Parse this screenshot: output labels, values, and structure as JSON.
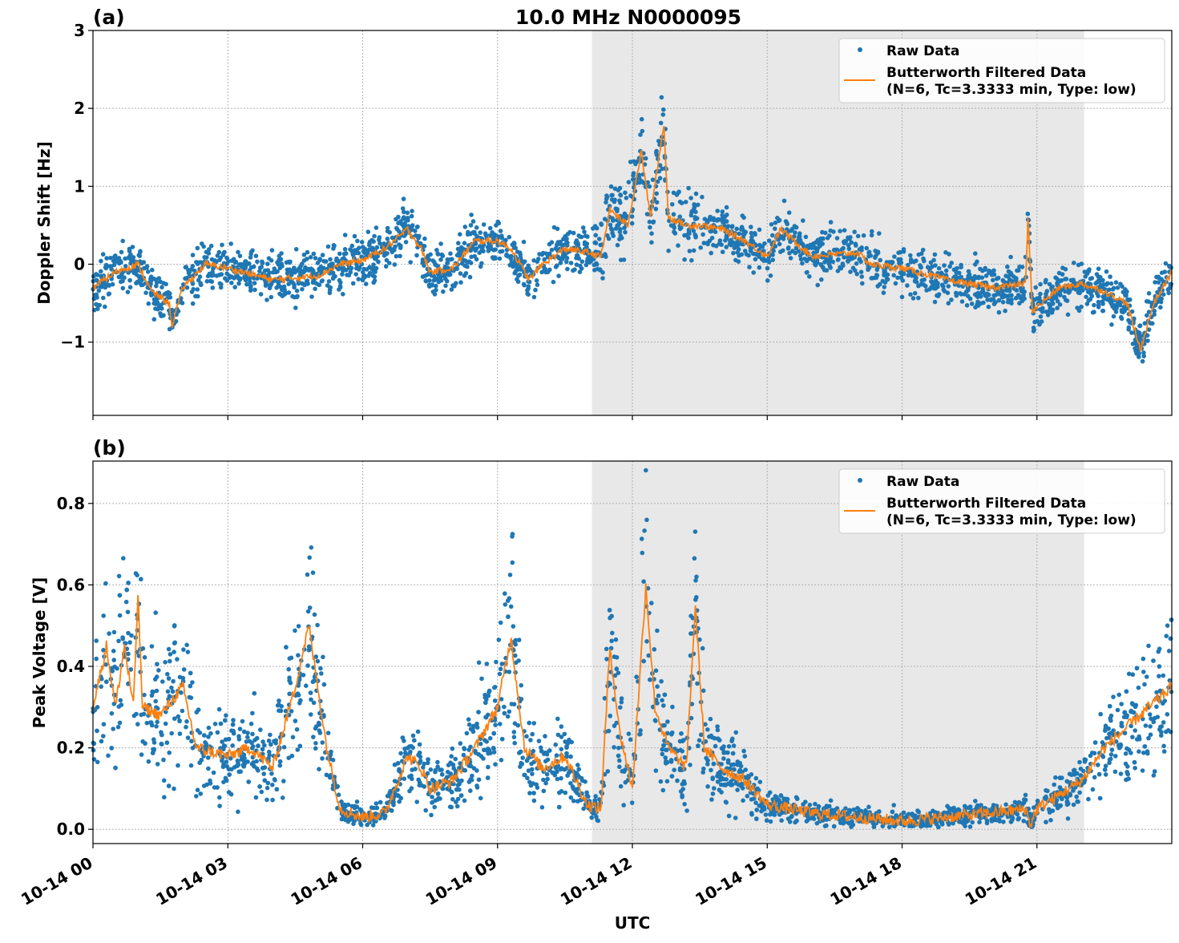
{
  "chart_data": {
    "title": "10.0 MHz N0000095",
    "xlabel": "UTC",
    "x_units": "hours UTC on 10-14",
    "xlim": [
      0,
      24
    ],
    "x_ticks": [
      0,
      3,
      6,
      9,
      12,
      15,
      18,
      21
    ],
    "x_tick_labels": [
      "10-14 00",
      "10-14 03",
      "10-14 06",
      "10-14 09",
      "10-14 12",
      "10-14 15",
      "10-14 18",
      "10-14 21"
    ],
    "grid": true,
    "shaded_interval_hours": [
      11.1,
      22.05
    ],
    "shade_color": "#e8e8e8",
    "colors": {
      "raw": "#1f77b4",
      "filtered": "#ff7f0e"
    },
    "legend": {
      "placement": "top-right",
      "raw_label": "Raw Data",
      "filtered_label_1": "Butterworth Filtered Data",
      "filtered_label_2": "(N=6, Tc=3.3333 min, Type: low)"
    },
    "panels": [
      {
        "label": "(a)",
        "type": "scatter+line",
        "ylabel": "Doppler Shift [Hz]",
        "ylim": [
          -1.94,
          3
        ],
        "y_ticks": [
          -1,
          0,
          1,
          2,
          3
        ],
        "y_tick_labels": [
          "−1",
          "0",
          "1",
          "2",
          "3"
        ],
        "filtered": {
          "x": [
            0,
            0.5,
            1,
            1.3,
            1.7,
            1.75,
            2,
            2.5,
            3,
            4,
            5,
            5.5,
            6,
            6.5,
            7,
            7.3,
            7.5,
            8,
            8.5,
            9,
            9.3,
            9.7,
            10,
            10.5,
            11,
            11.3,
            11.5,
            11.9,
            12.2,
            12.4,
            12.7,
            12.8,
            13.2,
            13.5,
            14,
            14.5,
            15,
            15.3,
            16,
            17,
            17.3,
            18,
            19,
            20,
            20.75,
            20.8,
            20.9,
            21.5,
            22,
            22.5,
            23,
            23.3,
            23.6,
            24
          ],
          "y": [
            -0.3,
            -0.1,
            0.0,
            -0.35,
            -0.5,
            -0.8,
            -0.3,
            0.0,
            -0.05,
            -0.2,
            -0.15,
            0.0,
            0.05,
            0.2,
            0.45,
            0.2,
            -0.1,
            -0.05,
            0.3,
            0.3,
            0.2,
            -0.2,
            0.0,
            0.2,
            0.15,
            0.1,
            0.7,
            0.5,
            1.45,
            0.6,
            1.8,
            0.6,
            0.5,
            0.5,
            0.45,
            0.3,
            0.1,
            0.45,
            0.1,
            0.15,
            0.0,
            -0.05,
            -0.2,
            -0.3,
            -0.25,
            0.6,
            -0.6,
            -0.3,
            -0.25,
            -0.35,
            -0.5,
            -1.1,
            -0.5,
            -0.1
          ]
        },
        "raw_approx_spread": 0.3
      },
      {
        "label": "(b)",
        "type": "scatter+line",
        "ylabel": "Peak Voltage [V]",
        "ylim": [
          -0.035,
          0.904
        ],
        "y_ticks": [
          0.0,
          0.2,
          0.4,
          0.6,
          0.8
        ],
        "y_tick_labels": [
          "0.0",
          "0.2",
          "0.4",
          "0.6",
          "0.8"
        ],
        "filtered": {
          "x": [
            0,
            0.3,
            0.5,
            0.7,
            0.9,
            1,
            1.1,
            1.5,
            2,
            2.3,
            3,
            3.5,
            4,
            4.5,
            4.8,
            5.2,
            5.5,
            6,
            6.5,
            7,
            7.3,
            7.5,
            8,
            8.5,
            9,
            9.3,
            9.6,
            10,
            10.5,
            11,
            11.3,
            11.5,
            11.7,
            12,
            12.3,
            12.5,
            12.8,
            13.2,
            13.4,
            13.6,
            14,
            14.5,
            15,
            16,
            17,
            18,
            19,
            20,
            20.75,
            20.85,
            21,
            22,
            22.5,
            23,
            23.5,
            24
          ],
          "y": [
            0.3,
            0.45,
            0.3,
            0.45,
            0.3,
            0.58,
            0.3,
            0.28,
            0.35,
            0.2,
            0.18,
            0.2,
            0.15,
            0.35,
            0.5,
            0.2,
            0.05,
            0.03,
            0.04,
            0.18,
            0.15,
            0.1,
            0.12,
            0.2,
            0.3,
            0.47,
            0.2,
            0.15,
            0.18,
            0.06,
            0.05,
            0.45,
            0.25,
            0.1,
            0.6,
            0.3,
            0.2,
            0.15,
            0.55,
            0.2,
            0.15,
            0.12,
            0.06,
            0.04,
            0.03,
            0.02,
            0.03,
            0.04,
            0.05,
            0.01,
            0.05,
            0.12,
            0.2,
            0.25,
            0.3,
            0.35
          ]
        },
        "raw_approx_spread": 0.6
      }
    ]
  }
}
